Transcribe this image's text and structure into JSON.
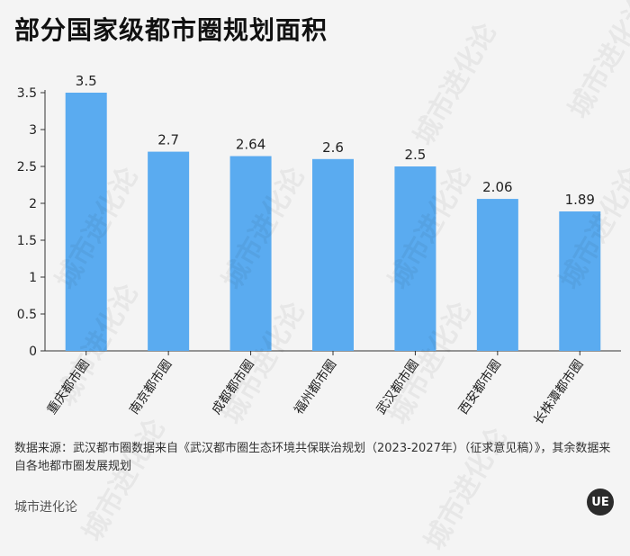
{
  "title": "部分国家级都市圈规划面积",
  "chart_data": {
    "type": "bar",
    "categories": [
      "重庆都市圈",
      "南京都市圈",
      "成都都市圈",
      "福州都市圈",
      "武汉都市圈",
      "西安都市圈",
      "长株潭都市圈"
    ],
    "values": [
      3.5,
      2.7,
      2.64,
      2.6,
      2.5,
      2.06,
      1.89
    ],
    "value_labels": [
      "3.5",
      "2.7",
      "2.64",
      "2.6",
      "2.5",
      "2.06",
      "1.89"
    ],
    "ylim": [
      0,
      3.5
    ],
    "yticks": [
      0,
      0.5,
      1,
      1.5,
      2,
      2.5,
      3,
      3.5
    ],
    "ytick_labels": [
      "0",
      "0.5",
      "1",
      "1.5",
      "2",
      "2.5",
      "3",
      "3.5"
    ],
    "grid": false,
    "bar_color": "#5aabf0"
  },
  "source": "数据来源：武汉都市圈数据来自《武汉都市圈生态环境共保联治规划（2023-2027年）（征求意见稿）》，其余数据来自各地都市圈发展规划",
  "brand": "城市进化论",
  "logo_text": "UE",
  "watermark": "城市进化论"
}
